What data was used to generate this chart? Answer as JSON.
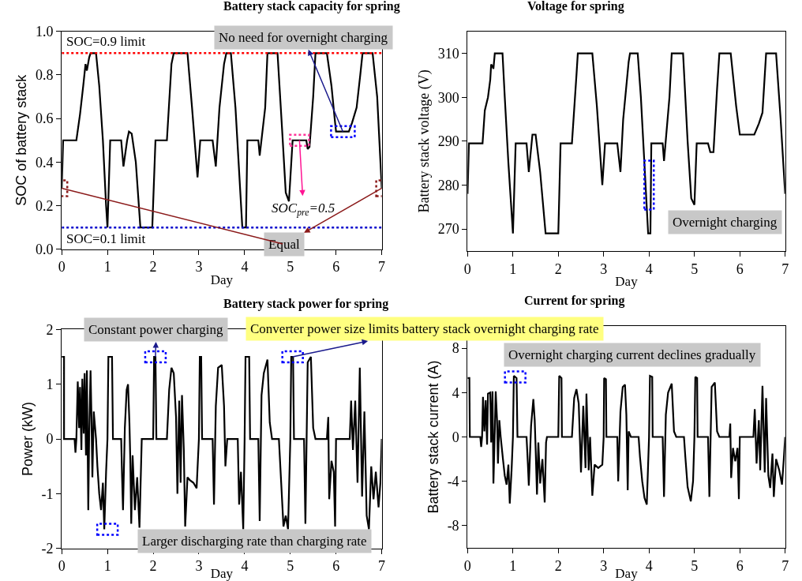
{
  "chart_data": [
    {
      "type": "line",
      "title": "Battery stack capacity for spring",
      "xlabel": "Day",
      "ylabel": "SOC of battery stack",
      "xlim": [
        0,
        7
      ],
      "xticks": [
        0,
        1,
        2,
        3,
        4,
        5,
        6,
        7
      ],
      "ylim": [
        0,
        1.0
      ],
      "yticks": [
        {
          "value": 0,
          "label": "0.0"
        },
        0.2,
        0.4,
        0.6,
        0.8,
        {
          "value": 1,
          "label": "1.0"
        }
      ],
      "x": [
        0,
        0.03,
        0.32,
        0.4,
        0.47,
        0.52,
        0.55,
        0.6,
        0.63,
        0.75,
        0.82,
        0.9,
        0.97,
        1.0,
        1.06,
        1.3,
        1.35,
        1.43,
        1.47,
        1.53,
        1.62,
        1.72,
        1.98,
        2.05,
        2.3,
        2.4,
        2.45,
        2.75,
        2.85,
        2.97,
        3.03,
        3.3,
        3.37,
        3.45,
        3.55,
        3.6,
        3.7,
        3.8,
        3.95,
        4.03,
        4.06,
        4.3,
        4.33,
        4.45,
        4.5,
        4.72,
        4.82,
        4.9,
        4.97,
        5.05,
        5.35,
        5.38,
        5.42,
        5.5,
        5.55,
        5.8,
        5.9,
        5.97,
        6.0,
        6.28,
        6.35,
        6.45,
        6.53,
        6.58,
        6.8,
        6.9,
        7.0
      ],
      "series": [
        {
          "color": "#000000",
          "values": [
            0.28,
            0.5,
            0.5,
            0.62,
            0.75,
            0.85,
            0.82,
            0.88,
            0.9,
            0.9,
            0.75,
            0.5,
            0.2,
            0.1,
            0.5,
            0.5,
            0.38,
            0.5,
            0.54,
            0.53,
            0.4,
            0.1,
            0.1,
            0.5,
            0.5,
            0.85,
            0.9,
            0.9,
            0.65,
            0.33,
            0.5,
            0.5,
            0.38,
            0.65,
            0.85,
            0.9,
            0.9,
            0.65,
            0.1,
            0.1,
            0.5,
            0.5,
            0.43,
            0.65,
            0.9,
            0.9,
            0.55,
            0.26,
            0.22,
            0.5,
            0.5,
            0.46,
            0.47,
            0.7,
            0.9,
            0.9,
            0.75,
            0.6,
            0.54,
            0.54,
            0.58,
            0.65,
            0.8,
            0.9,
            0.9,
            0.7,
            0.28
          ]
        }
      ],
      "ref_lines": [
        {
          "axis": "y",
          "value": 0.9,
          "label": "SOC=0.9 limit",
          "color": "#ff0000",
          "line_style": "dotted"
        },
        {
          "axis": "y",
          "value": 0.1,
          "label": "SOC=0.1 limit",
          "color": "#0000cc",
          "line_style": "dotted"
        }
      ],
      "annotations": [
        {
          "text": "No need for overnight charging",
          "x": 6.15,
          "y": 0.54
        },
        {
          "text": "Equal",
          "x": 7,
          "y": 0.28
        },
        {
          "text": "SOC$_{pre}$=0.5",
          "x": 5.2,
          "y": 0.5
        }
      ]
    },
    {
      "type": "line",
      "title": "Voltage for spring",
      "xlabel": "Day",
      "ylabel": "Battery stack voltage (V)",
      "xlim": [
        0,
        7
      ],
      "xticks": [
        0,
        1,
        2,
        3,
        4,
        5,
        6,
        7
      ],
      "ylim": [
        265,
        315
      ],
      "yticks": [
        270,
        280,
        290,
        300,
        310
      ],
      "x": [
        0,
        0.03,
        0.33,
        0.38,
        0.45,
        0.5,
        0.52,
        0.55,
        0.57,
        0.6,
        0.77,
        0.82,
        0.9,
        1.0,
        1.06,
        1.3,
        1.35,
        1.43,
        1.5,
        1.6,
        1.72,
        2.0,
        2.05,
        2.3,
        2.4,
        2.43,
        2.75,
        2.85,
        2.97,
        3.03,
        3.3,
        3.37,
        3.43,
        3.55,
        3.58,
        3.75,
        3.82,
        3.98,
        4.03,
        4.05,
        4.3,
        4.33,
        4.45,
        4.5,
        4.75,
        4.85,
        4.93,
        5.0,
        5.05,
        5.3,
        5.35,
        5.42,
        5.5,
        5.55,
        5.8,
        5.92,
        6.0,
        6.32,
        6.42,
        6.5,
        6.58,
        6.8,
        6.9,
        7.0
      ],
      "series": [
        {
          "color": "#000000",
          "values": [
            278,
            289.5,
            289.5,
            297,
            300,
            304,
            307.5,
            307,
            306.5,
            310,
            310,
            300,
            285,
            269,
            289.5,
            289.5,
            283,
            291.5,
            291.5,
            283,
            269,
            269,
            289.5,
            289.5,
            305,
            310,
            310,
            298,
            280,
            289.5,
            289.5,
            283,
            295,
            308,
            310,
            310,
            300,
            269,
            269,
            289.5,
            289.5,
            285.5,
            300,
            310,
            310,
            290,
            277,
            275.5,
            289.5,
            289.5,
            287.5,
            287.5,
            302,
            310,
            310,
            298,
            291.5,
            291.5,
            294,
            296.5,
            310,
            310,
            295,
            278
          ]
        }
      ],
      "annotations": [
        {
          "text": "Overnight charging",
          "x": 4.0,
          "y": 280
        }
      ]
    },
    {
      "type": "line",
      "title": "Battery stack power for spring",
      "xlabel": "Day",
      "ylabel": "Power (kW)",
      "xlim": [
        0,
        7
      ],
      "xticks": [
        0,
        1,
        2,
        3,
        4,
        5,
        6,
        7
      ],
      "ylim": [
        -2,
        2
      ],
      "yticks": [
        -2,
        -1,
        0,
        1,
        2
      ],
      "x": [
        0,
        0.05,
        0.05,
        0.28,
        0.3,
        0.32,
        0.35,
        0.38,
        0.4,
        0.43,
        0.45,
        0.48,
        0.5,
        0.53,
        0.55,
        0.58,
        0.6,
        0.63,
        0.65,
        0.67,
        0.7,
        0.75,
        0.78,
        0.82,
        0.86,
        0.9,
        0.93,
        0.97,
        1.0,
        1.02,
        1.1,
        1.12,
        1.3,
        1.32,
        1.34,
        1.38,
        1.42,
        1.45,
        1.48,
        1.5,
        1.52,
        1.55,
        1.6,
        1.65,
        1.7,
        1.75,
        2.0,
        2.02,
        2.05,
        2.07,
        2.3,
        2.35,
        2.4,
        2.45,
        2.5,
        2.53,
        2.57,
        2.6,
        2.63,
        2.67,
        2.7,
        2.75,
        2.8,
        2.88,
        2.95,
        3.0,
        3.02,
        3.05,
        3.07,
        3.3,
        3.33,
        3.37,
        3.42,
        3.5,
        3.55,
        3.58,
        3.62,
        3.85,
        3.88,
        3.92,
        3.97,
        4.0,
        4.02,
        4.1,
        4.12,
        4.3,
        4.33,
        4.37,
        4.42,
        4.5,
        4.55,
        4.6,
        4.75,
        4.8,
        4.85,
        4.9,
        4.95,
        5.0,
        5.02,
        5.06,
        5.08,
        5.3,
        5.33,
        5.38,
        5.45,
        5.5,
        5.55,
        5.8,
        5.83,
        5.85,
        5.9,
        5.95,
        5.98,
        6.0,
        6.3,
        6.33,
        6.37,
        6.42,
        6.47,
        6.52,
        6.57,
        6.62,
        6.67,
        6.72,
        6.77,
        6.82,
        6.87,
        6.93,
        6.97,
        7.0
      ],
      "series": [
        {
          "color": "#000000",
          "values": [
            1.5,
            1.5,
            0,
            0,
            -0.25,
            0,
            1.05,
            0.2,
            0.95,
            -0.2,
            1.1,
            0.1,
            1.2,
            -0.3,
            1.25,
            -1.3,
            0.1,
            1.25,
            0.4,
            -0.7,
            0.5,
            0,
            -0.5,
            -1.0,
            -1.3,
            -0.8,
            -1.65,
            -0.6,
            0,
            1.5,
            1.5,
            0,
            0,
            -0.7,
            -1.3,
            0.2,
            0.9,
            1.0,
            0.3,
            -0.4,
            -1.55,
            -0.3,
            -1.3,
            -0.7,
            -1.62,
            0,
            0,
            1.5,
            1.5,
            0,
            0,
            0.9,
            1.3,
            1.2,
            0.4,
            -1.0,
            0.7,
            -0.8,
            0.8,
            -0.2,
            -1.6,
            -0.7,
            -0.75,
            -0.8,
            -0.9,
            0,
            1.5,
            1.5,
            0,
            0,
            -1.2,
            0.6,
            1.3,
            1.35,
            0.6,
            -0.5,
            0,
            0,
            -1.2,
            -0.6,
            -1.65,
            0,
            1.5,
            1.5,
            0,
            0,
            -1.5,
            0.8,
            1.2,
            1.45,
            0.3,
            0,
            0,
            -0.8,
            -1.6,
            -1.4,
            -1.65,
            0,
            1.5,
            1.5,
            0,
            0,
            -1.55,
            1.4,
            1.5,
            0.2,
            0,
            0,
            0.4,
            -1.1,
            -0.4,
            -0.6,
            -1.6,
            0,
            0,
            0.7,
            -0.2,
            0.7,
            -0.8,
            1.3,
            -1.05,
            0.5,
            -1.4,
            -1.65,
            -0.5,
            -1.1,
            -0.6,
            -1.25,
            -0.8,
            0
          ]
        }
      ],
      "annotations": [
        {
          "text": "Constant power charging",
          "x": 2.05,
          "y": 1.5
        },
        {
          "text": "Converter power size limits battery stack overnight charging rate",
          "x": 5.05,
          "y": 1.5
        },
        {
          "text": "Larger discharging rate than charging rate",
          "x": 1.0,
          "y": -1.65
        }
      ]
    },
    {
      "type": "line",
      "title": "Current for spring",
      "xlabel": "Day",
      "ylabel": "Battery stack current (A)",
      "xlim": [
        0,
        7
      ],
      "xticks": [
        0,
        1,
        2,
        3,
        4,
        5,
        6,
        7
      ],
      "ylim": [
        -10,
        10
      ],
      "yticks": [
        -8,
        -4,
        0,
        4,
        8
      ],
      "x": [
        0,
        0.04,
        0.05,
        0.28,
        0.3,
        0.32,
        0.34,
        0.37,
        0.4,
        0.43,
        0.45,
        0.5,
        0.52,
        0.55,
        0.57,
        0.6,
        0.62,
        0.65,
        0.67,
        0.7,
        0.73,
        0.78,
        0.82,
        0.86,
        0.9,
        0.93,
        0.97,
        1.0,
        1.02,
        1.08,
        1.1,
        1.3,
        1.33,
        1.35,
        1.4,
        1.45,
        1.48,
        1.5,
        1.53,
        1.56,
        1.6,
        1.65,
        1.7,
        1.73,
        1.75,
        2.0,
        2.02,
        2.07,
        2.08,
        2.3,
        2.35,
        2.4,
        2.45,
        2.5,
        2.55,
        2.6,
        2.62,
        2.67,
        2.7,
        2.75,
        2.8,
        2.88,
        2.97,
        3.0,
        3.01,
        3.05,
        3.06,
        3.3,
        3.32,
        3.37,
        3.42,
        3.47,
        3.5,
        3.53,
        3.55,
        3.6,
        3.77,
        3.8,
        3.85,
        3.9,
        3.95,
        4.0,
        4.02,
        4.07,
        4.08,
        4.3,
        4.33,
        4.37,
        4.42,
        4.5,
        4.55,
        4.6,
        4.77,
        4.8,
        4.85,
        4.92,
        4.97,
        5.0,
        5.02,
        5.06,
        5.07,
        5.3,
        5.33,
        5.38,
        5.45,
        5.5,
        5.55,
        5.77,
        5.79,
        5.81,
        5.85,
        5.9,
        5.95,
        5.98,
        6.0,
        6.3,
        6.33,
        6.37,
        6.42,
        6.45,
        6.5,
        6.55,
        6.58,
        6.63,
        6.67,
        6.72,
        6.75,
        6.8,
        6.87,
        6.93,
        6.97,
        7.0
      ],
      "series": [
        {
          "color": "#000000",
          "values": [
            5.3,
            5.3,
            0,
            0,
            -0.9,
            0,
            3.6,
            0.5,
            3.3,
            -0.7,
            3.9,
            4.0,
            -0.5,
            4.1,
            -4.2,
            0.5,
            4.1,
            1.5,
            -2.4,
            1.5,
            0,
            -2,
            -3.5,
            -4.3,
            -2.5,
            -6.0,
            -3,
            0,
            5.5,
            5.3,
            0,
            0,
            -2.5,
            -4.4,
            1.0,
            3.4,
            1.5,
            -1,
            -5.2,
            -0.5,
            -4.2,
            -2,
            -5.9,
            -0.5,
            0,
            0,
            5.5,
            5.3,
            0,
            0,
            3.5,
            4.3,
            3.0,
            -3.2,
            2.8,
            -2.8,
            3.9,
            -3.0,
            0,
            -5.3,
            -2.5,
            -2.8,
            -2.5,
            0,
            5.3,
            5.2,
            0,
            0,
            -4.0,
            2.3,
            4.5,
            4.7,
            2.0,
            -4.8,
            0.5,
            0,
            0,
            -1.8,
            -4,
            -5.5,
            -6.1,
            0,
            5.5,
            5.4,
            0,
            0,
            -5.4,
            2.0,
            4.0,
            4.8,
            0.5,
            0,
            0,
            -1.8,
            -4.5,
            -5.8,
            -4.0,
            0,
            5.4,
            5.3,
            0,
            0,
            -5.4,
            4.5,
            4.9,
            0.5,
            0,
            0,
            1.2,
            -3.7,
            -1,
            -2.2,
            -1,
            -5.6,
            0,
            0,
            2.5,
            -2.4,
            1.5,
            -3.0,
            4.6,
            -3.2,
            3.5,
            -3.5,
            -4.6,
            -1.5,
            -5.4,
            -2.0,
            -3.0,
            -4.3,
            -2,
            0
          ]
        }
      ],
      "annotations": [
        {
          "text": "Overnight charging current declines gradually",
          "x": 1.05,
          "y": 5.4
        }
      ]
    }
  ]
}
